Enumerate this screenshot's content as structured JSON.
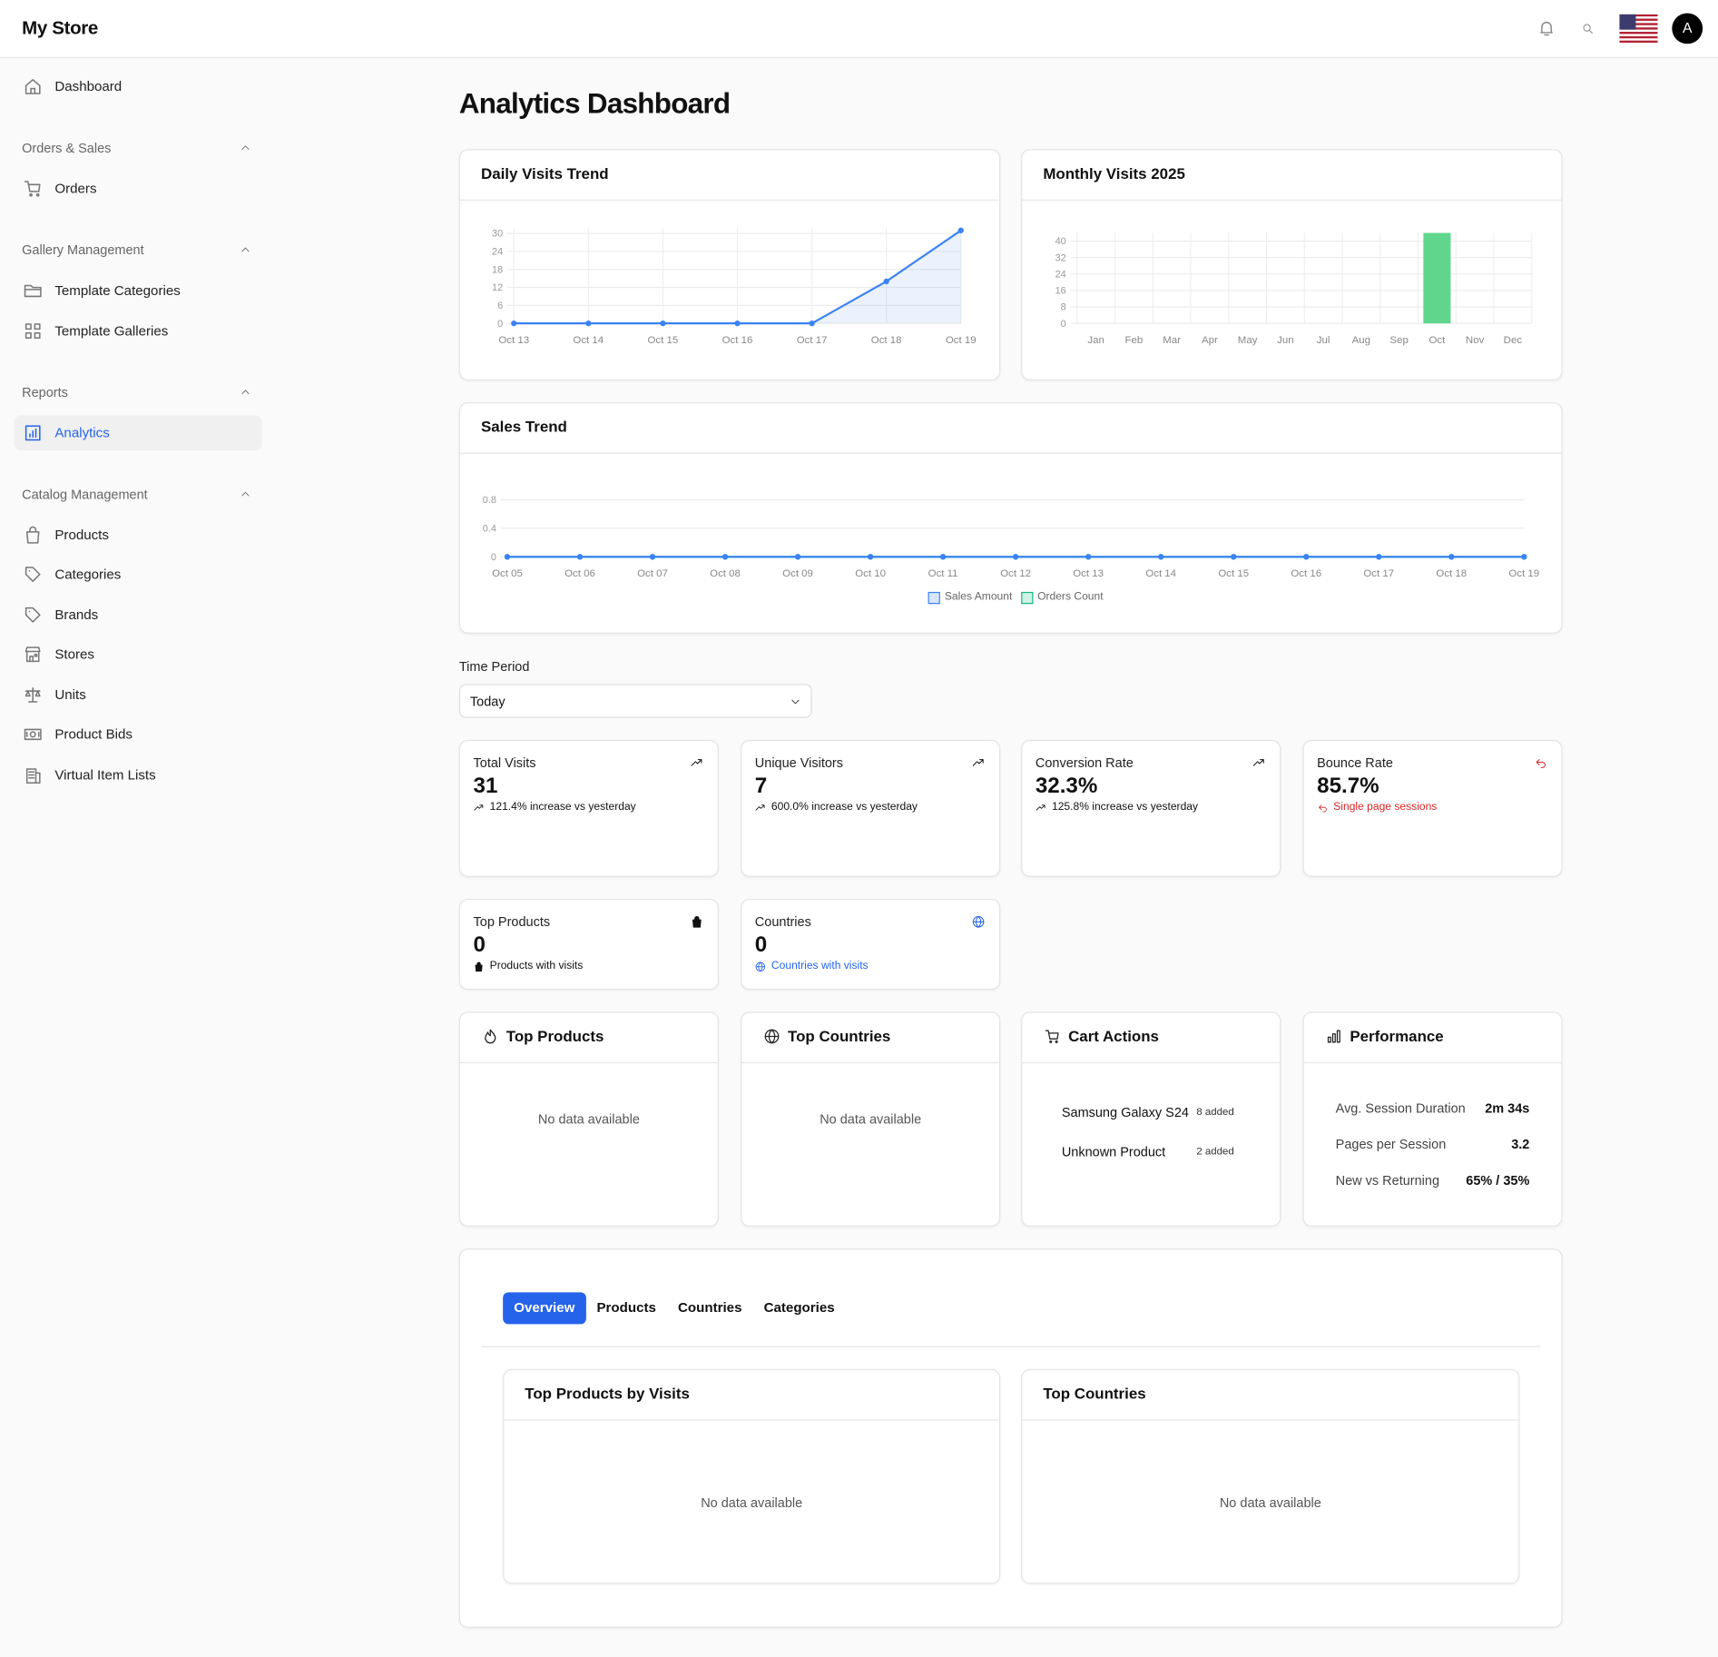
{
  "header": {
    "brand": "My Store",
    "avatar": "A"
  },
  "sidebar": {
    "top": [
      {
        "label": "Dashboard"
      }
    ],
    "sections": [
      {
        "title": "Orders & Sales",
        "items": [
          {
            "label": "Orders"
          }
        ]
      },
      {
        "title": "Gallery Management",
        "items": [
          {
            "label": "Template Categories"
          },
          {
            "label": "Template Galleries"
          }
        ]
      },
      {
        "title": "Reports",
        "items": [
          {
            "label": "Analytics",
            "active": true
          }
        ]
      },
      {
        "title": "Catalog Management",
        "items": [
          {
            "label": "Products"
          },
          {
            "label": "Categories"
          },
          {
            "label": "Brands"
          },
          {
            "label": "Stores"
          },
          {
            "label": "Units"
          },
          {
            "label": "Product Bids"
          },
          {
            "label": "Virtual Item Lists"
          }
        ]
      }
    ]
  },
  "page_title": "Analytics Dashboard",
  "chart_data": [
    {
      "type": "line",
      "title": "Daily Visits Trend",
      "categories": [
        "Oct 13",
        "Oct 14",
        "Oct 15",
        "Oct 16",
        "Oct 17",
        "Oct 18",
        "Oct 19"
      ],
      "values": [
        0,
        0,
        0,
        0,
        0,
        14,
        31
      ],
      "color": "#3b82f6",
      "area": true,
      "ylim": [
        0,
        32
      ],
      "yticks": [
        0,
        6,
        12,
        18,
        24,
        30
      ],
      "grid": "both"
    },
    {
      "type": "bar",
      "title": "Monthly Visits 2025",
      "categories": [
        "Jan",
        "Feb",
        "Mar",
        "Apr",
        "May",
        "Jun",
        "Jul",
        "Aug",
        "Sep",
        "Oct",
        "Nov",
        "Dec"
      ],
      "values": [
        0,
        0,
        0,
        0,
        0,
        0,
        0,
        0,
        0,
        44,
        0,
        0
      ],
      "color": "#5fd68b",
      "ylim": [
        0,
        44
      ],
      "yticks": [
        0,
        8,
        16,
        24,
        32,
        40
      ],
      "grid": "both"
    },
    {
      "type": "line",
      "title": "Sales Trend",
      "categories": [
        "Oct 05",
        "Oct 06",
        "Oct 07",
        "Oct 08",
        "Oct 09",
        "Oct 10",
        "Oct 11",
        "Oct 12",
        "Oct 13",
        "Oct 14",
        "Oct 15",
        "Oct 16",
        "Oct 17",
        "Oct 18",
        "Oct 19"
      ],
      "series": [
        {
          "name": "Sales Amount",
          "color": "#3b82f6",
          "values": [
            0,
            0,
            0,
            0,
            0,
            0,
            0,
            0,
            0,
            0,
            0,
            0,
            0,
            0,
            0
          ]
        },
        {
          "name": "Orders Count",
          "color": "#10b981",
          "values": [
            0,
            0,
            0,
            0,
            0,
            0,
            0,
            0,
            0,
            0,
            0,
            0,
            0,
            0,
            0
          ]
        }
      ],
      "ylim": [
        0,
        1
      ],
      "yticks": [
        0,
        0.4,
        0.8
      ],
      "grid": "y",
      "legend": "bottom"
    }
  ],
  "filter": {
    "label": "Time Period",
    "value": "Today"
  },
  "stats": [
    {
      "title": "Total Visits",
      "value": 31,
      "note": "121.4% increase vs yesterday",
      "color": "#111111"
    },
    {
      "title": "Unique Visitors",
      "value": 7,
      "note": "600.0% increase vs yesterday",
      "color": "#111111"
    },
    {
      "title": "Conversion Rate",
      "value": "32.3%",
      "note": "125.8% increase vs yesterday",
      "color": "#111111"
    },
    {
      "title": "Bounce Rate",
      "value": "85.7%",
      "note": "Single page sessions",
      "color": "#dc2626"
    },
    {
      "title": "Top Products",
      "value": 0,
      "note": "Products with visits",
      "color": "#111111"
    },
    {
      "title": "Countries",
      "value": 0,
      "note": "Countries with visits",
      "color": "#2563eb"
    }
  ],
  "panels": [
    {
      "title": "Top Products",
      "empty": "No data available"
    },
    {
      "title": "Top Countries",
      "empty": "No data available"
    },
    {
      "title": "Cart Actions",
      "rows": [
        [
          "Samsung Galaxy S24",
          "8 added"
        ],
        [
          "Unknown Product",
          "2 added"
        ]
      ]
    },
    {
      "title": "Performance",
      "rows": [
        [
          "Avg. Session Duration",
          "2m 34s"
        ],
        [
          "Pages per Session",
          "3.2"
        ],
        [
          "New vs Returning",
          "65% / 35%"
        ]
      ]
    }
  ],
  "tabs": {
    "items": [
      "Overview",
      "Products",
      "Countries",
      "Categories"
    ],
    "active": 0,
    "panels": [
      {
        "title": "Top Products by Visits",
        "empty": "No data available"
      },
      {
        "title": "Top Countries",
        "empty": "No data available"
      }
    ]
  }
}
